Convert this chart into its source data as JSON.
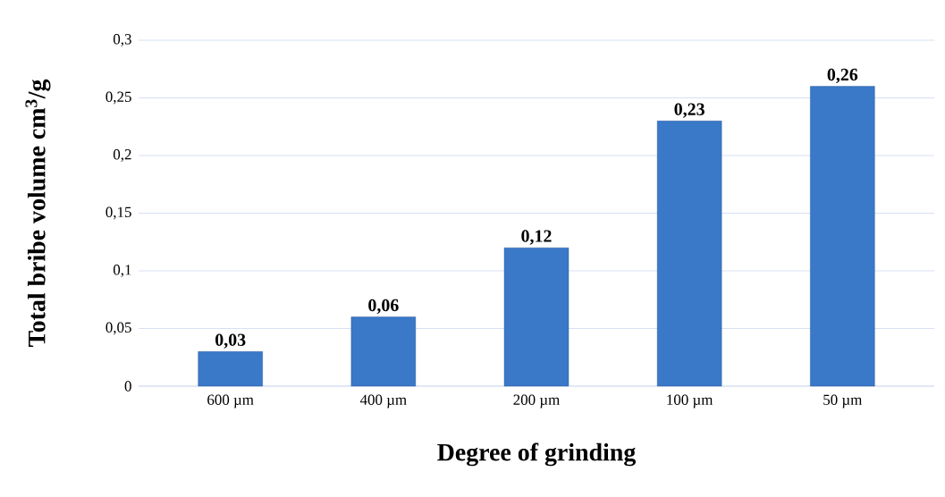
{
  "chart_data": {
    "type": "bar",
    "xlabel": "Degree of grinding",
    "ylabel": "Total bribe volume cm$^{3}$/g",
    "categories": [
      "600 µm",
      "400 µm",
      "200 µm",
      "100 µm",
      "50 µm"
    ],
    "values": [
      0.03,
      0.06,
      0.12,
      0.23,
      0.26
    ],
    "color": "#3a78c8",
    "value_labels": [
      "0,03",
      "0,06",
      "0,12",
      "0,23",
      "0,26"
    ],
    "ylim": [
      0,
      0.3
    ],
    "yticks": [
      0,
      {
        "value": 0.05,
        "label": "0,05"
      },
      {
        "value": 0.1,
        "label": "0,1"
      },
      {
        "value": 0.15,
        "label": "0,15"
      },
      {
        "value": 0.2,
        "label": "0,2"
      },
      {
        "value": 0.25,
        "label": "0,25"
      },
      {
        "value": 0.3,
        "label": "0,3"
      }
    ],
    "grid": "y"
  }
}
